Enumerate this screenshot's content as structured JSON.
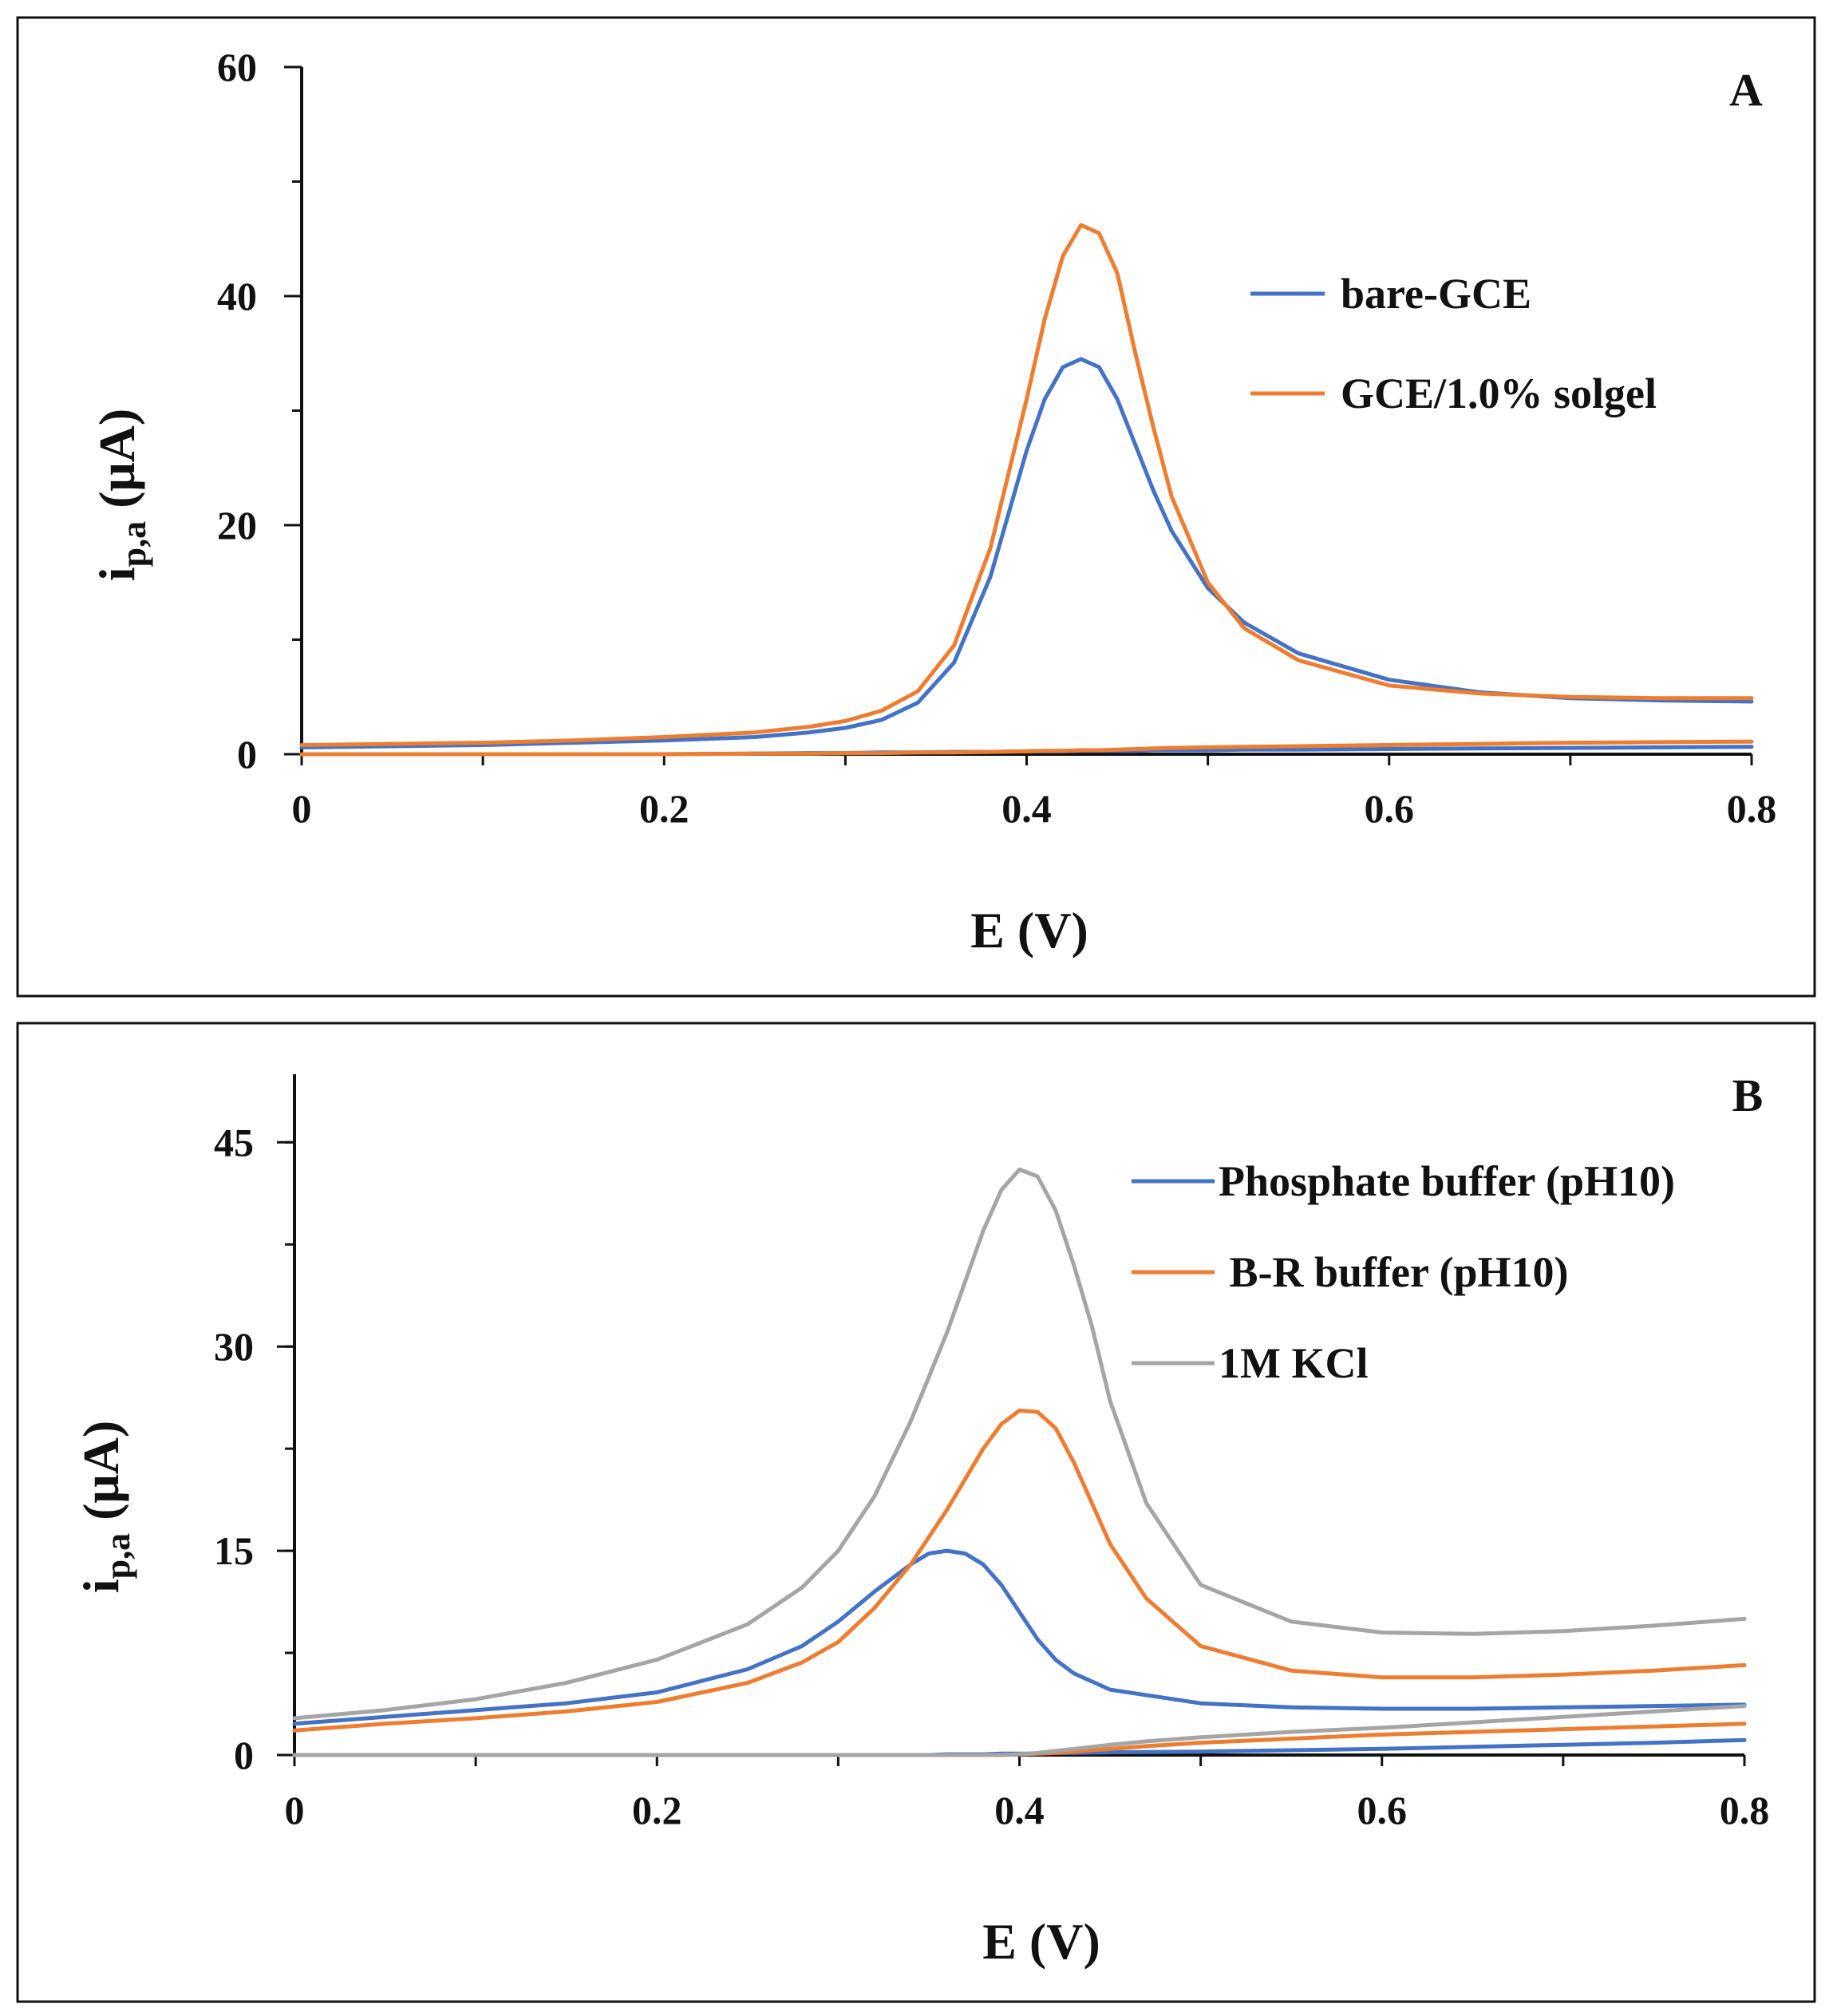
{
  "chart_data": [
    {
      "type": "line",
      "panel_label": "A",
      "xlabel": "E (V)",
      "ylabel_main": "i",
      "ylabel_sub": "p,a",
      "ylabel_unit": " (μA)",
      "xlim": [
        0,
        0.8
      ],
      "ylim": [
        0,
        60
      ],
      "xticks": [
        0,
        0.2,
        0.4,
        0.6,
        0.8
      ],
      "xtick_labels": [
        "0",
        "0.2",
        "0.4",
        "0.6",
        "0.8"
      ],
      "yticks": [
        0,
        20,
        40,
        60
      ],
      "ytick_labels": [
        "0",
        "20",
        "40",
        "60"
      ],
      "grid": false,
      "legend_position": "top-right",
      "series": [
        {
          "name": "bare-GCE",
          "color": "#4472C4",
          "x": [
            0,
            0.05,
            0.1,
            0.15,
            0.2,
            0.25,
            0.28,
            0.3,
            0.32,
            0.34,
            0.36,
            0.38,
            0.4,
            0.41,
            0.42,
            0.43,
            0.44,
            0.45,
            0.46,
            0.47,
            0.48,
            0.5,
            0.52,
            0.55,
            0.6,
            0.65,
            0.7,
            0.75,
            0.8
          ],
          "y": [
            0.6,
            0.7,
            0.8,
            1.0,
            1.2,
            1.5,
            1.9,
            2.3,
            3.0,
            4.5,
            8.0,
            15.5,
            26.5,
            31.0,
            33.8,
            34.5,
            33.8,
            31.0,
            27.0,
            23.0,
            19.5,
            14.5,
            11.5,
            8.8,
            6.5,
            5.4,
            4.9,
            4.7,
            4.6
          ],
          "y_back": [
            0.0,
            0.0,
            0.0,
            0.0,
            0.0,
            0.05,
            0.1,
            0.1,
            0.15,
            0.15,
            0.2,
            0.2,
            0.25,
            0.25,
            0.25,
            0.3,
            0.3,
            0.3,
            0.3,
            0.35,
            0.35,
            0.35,
            0.4,
            0.4,
            0.45,
            0.5,
            0.55,
            0.6,
            0.65
          ]
        },
        {
          "name": "GCE/1.0% solgel",
          "color": "#ED7D31",
          "x": [
            0,
            0.05,
            0.1,
            0.15,
            0.2,
            0.25,
            0.28,
            0.3,
            0.32,
            0.34,
            0.36,
            0.38,
            0.4,
            0.41,
            0.42,
            0.43,
            0.44,
            0.45,
            0.46,
            0.47,
            0.48,
            0.5,
            0.52,
            0.55,
            0.6,
            0.65,
            0.7,
            0.75,
            0.8
          ],
          "y": [
            0.8,
            0.9,
            1.0,
            1.2,
            1.5,
            1.9,
            2.4,
            2.9,
            3.8,
            5.5,
            9.5,
            18.0,
            31.0,
            38.0,
            43.5,
            46.2,
            45.5,
            42.0,
            35.0,
            28.5,
            22.5,
            15.0,
            11.0,
            8.2,
            6.0,
            5.3,
            5.0,
            4.9,
            4.9
          ],
          "y_back": [
            0.0,
            0.0,
            0.0,
            0.0,
            0.0,
            0.05,
            0.05,
            0.1,
            0.1,
            0.15,
            0.15,
            0.2,
            0.25,
            0.3,
            0.3,
            0.35,
            0.35,
            0.4,
            0.45,
            0.5,
            0.55,
            0.6,
            0.65,
            0.7,
            0.8,
            0.9,
            1.0,
            1.05,
            1.1
          ]
        }
      ]
    },
    {
      "type": "line",
      "panel_label": "B",
      "xlabel": "E (V)",
      "ylabel_main": "i",
      "ylabel_sub": "p,a",
      "ylabel_unit": " (μA)",
      "xlim": [
        0,
        0.8
      ],
      "ylim": [
        0,
        50
      ],
      "xticks": [
        0,
        0.2,
        0.4,
        0.6,
        0.8
      ],
      "xtick_labels": [
        "0",
        "0.2",
        "0.4",
        "0.6",
        "0.8"
      ],
      "yticks": [
        0,
        15,
        30,
        45
      ],
      "ytick_labels": [
        "0",
        "15",
        "30",
        "45"
      ],
      "grid": false,
      "legend_position": "top-right",
      "series": [
        {
          "name": "Phosphate buffer (pH10)",
          "color": "#4472C4",
          "x": [
            0,
            0.05,
            0.1,
            0.15,
            0.2,
            0.25,
            0.28,
            0.3,
            0.32,
            0.34,
            0.35,
            0.36,
            0.37,
            0.38,
            0.39,
            0.4,
            0.41,
            0.42,
            0.43,
            0.45,
            0.5,
            0.55,
            0.6,
            0.65,
            0.7,
            0.75,
            0.8
          ],
          "y": [
            2.3,
            2.8,
            3.3,
            3.8,
            4.6,
            6.3,
            8.0,
            9.8,
            12.0,
            14.0,
            14.8,
            15.0,
            14.8,
            14.0,
            12.5,
            10.5,
            8.5,
            7.0,
            6.0,
            4.8,
            3.8,
            3.5,
            3.4,
            3.4,
            3.5,
            3.6,
            3.7
          ],
          "y_back": [
            0.0,
            0.0,
            0.0,
            0.0,
            0.0,
            0.0,
            0.0,
            0.0,
            0.0,
            0.0,
            0.0,
            0.05,
            0.05,
            0.05,
            0.1,
            0.1,
            0.1,
            0.15,
            0.15,
            0.2,
            0.25,
            0.35,
            0.45,
            0.6,
            0.75,
            0.9,
            1.1
          ]
        },
        {
          "name": " B-R buffer (pH10)",
          "color": "#ED7D31",
          "x": [
            0,
            0.05,
            0.1,
            0.15,
            0.2,
            0.25,
            0.28,
            0.3,
            0.32,
            0.34,
            0.36,
            0.38,
            0.39,
            0.4,
            0.41,
            0.42,
            0.43,
            0.44,
            0.45,
            0.47,
            0.5,
            0.55,
            0.6,
            0.65,
            0.7,
            0.75,
            0.8
          ],
          "y": [
            1.8,
            2.3,
            2.7,
            3.2,
            3.9,
            5.3,
            6.8,
            8.3,
            10.8,
            14.0,
            18.0,
            22.5,
            24.3,
            25.3,
            25.2,
            24.0,
            21.5,
            18.5,
            15.5,
            11.5,
            8.0,
            6.2,
            5.7,
            5.7,
            5.9,
            6.2,
            6.6
          ],
          "y_back": [
            0.0,
            0.0,
            0.0,
            0.0,
            0.0,
            0.0,
            0.0,
            0.0,
            0.0,
            0.0,
            0.0,
            0.0,
            0.0,
            0.05,
            0.1,
            0.15,
            0.25,
            0.35,
            0.45,
            0.65,
            0.9,
            1.2,
            1.5,
            1.7,
            1.9,
            2.1,
            2.3
          ]
        },
        {
          "name": "1M KCl",
          "color": "#A5A5A5",
          "x": [
            0,
            0.05,
            0.1,
            0.15,
            0.2,
            0.25,
            0.28,
            0.3,
            0.32,
            0.34,
            0.36,
            0.38,
            0.39,
            0.4,
            0.41,
            0.42,
            0.43,
            0.44,
            0.45,
            0.47,
            0.5,
            0.55,
            0.6,
            0.65,
            0.7,
            0.75,
            0.8
          ],
          "y": [
            2.7,
            3.3,
            4.1,
            5.3,
            7.0,
            9.6,
            12.3,
            15.0,
            19.0,
            24.5,
            31.0,
            38.5,
            41.5,
            43.0,
            42.5,
            40.0,
            36.0,
            31.5,
            26.0,
            18.5,
            12.5,
            9.8,
            9.0,
            8.9,
            9.1,
            9.5,
            10.0
          ],
          "y_back": [
            0.0,
            0.0,
            0.0,
            0.0,
            0.0,
            0.0,
            0.0,
            0.0,
            0.0,
            0.0,
            0.0,
            0.0,
            0.0,
            0.05,
            0.15,
            0.3,
            0.45,
            0.6,
            0.75,
            1.0,
            1.3,
            1.7,
            2.0,
            2.4,
            2.8,
            3.2,
            3.6
          ]
        }
      ]
    }
  ]
}
